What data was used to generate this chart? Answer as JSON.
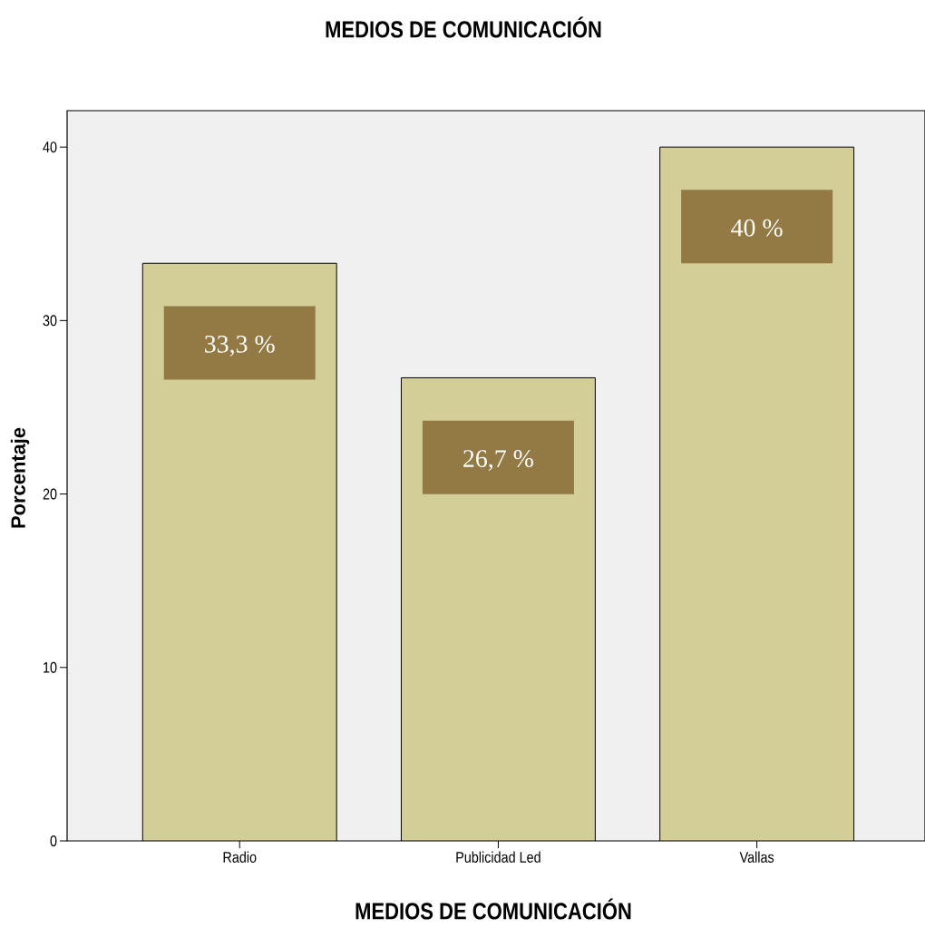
{
  "chart_data": {
    "type": "bar",
    "title": "MEDIOS DE COMUNICACIÓN",
    "xlabel": "MEDIOS DE COMUNICACIÓN",
    "ylabel": "Porcentaje",
    "categories": [
      "Radio",
      "Publicidad Led",
      "Vallas"
    ],
    "values": [
      33.3,
      26.7,
      40
    ],
    "value_labels": [
      "33,3 %",
      "26,7 %",
      "40 %"
    ],
    "color": "#d3cd98",
    "ylim": [
      0,
      42.1
    ],
    "yticks": [
      0,
      10,
      20,
      30,
      40
    ],
    "grid": false
  }
}
